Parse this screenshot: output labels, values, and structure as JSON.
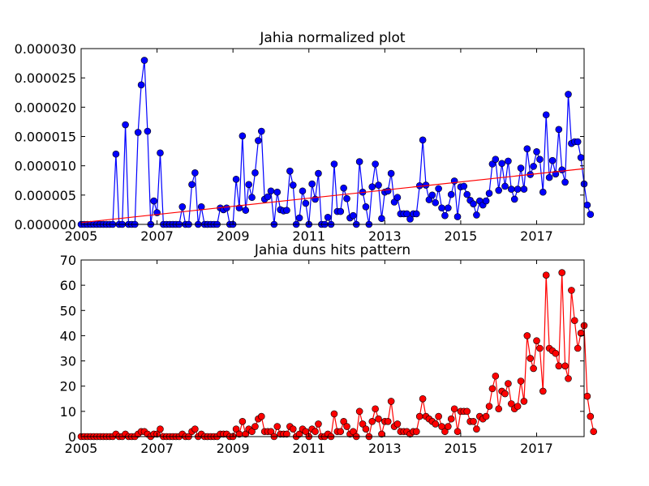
{
  "chart_data": [
    {
      "type": "line",
      "title": "Jahia normalized plot",
      "xlabel": "",
      "ylabel": "",
      "xlim": [
        2005.0,
        2018.25
      ],
      "ylim": [
        0,
        3e-05
      ],
      "x_ticks": [
        2005,
        2007,
        2009,
        2011,
        2013,
        2015,
        2017
      ],
      "x_tick_labels": [
        "2005",
        "2007",
        "2009",
        "2011",
        "2013",
        "2015",
        "2017"
      ],
      "y_ticks": [
        0,
        5e-06,
        1e-05,
        1.5e-05,
        2e-05,
        2.5e-05,
        3e-05
      ],
      "y_tick_labels": [
        "0.000000",
        "0.000005",
        "0.000010",
        "0.000015",
        "0.000020",
        "0.000025",
        "0.000030"
      ],
      "grid": false,
      "series": [
        {
          "color": "#0000ff",
          "marker": "circle",
          "x_start": 2005.0,
          "x_step_months": 1,
          "values": [
            0,
            0,
            0,
            0,
            0,
            0,
            0,
            0,
            0,
            0,
            0,
            1.2e-05,
            0,
            0,
            1.7e-05,
            0,
            0,
            0,
            1.57e-05,
            2.38e-05,
            2.8e-05,
            1.59e-05,
            0,
            4e-06,
            2e-06,
            1.22e-05,
            0,
            0,
            0,
            0,
            0,
            0,
            3e-06,
            0,
            0,
            6.8e-06,
            8.8e-06,
            0,
            3e-06,
            0,
            0,
            0,
            0,
            0,
            2.8e-06,
            2.5e-06,
            2.8e-06,
            0,
            0,
            7.7e-06,
            2.8e-06,
            1.51e-05,
            2.4e-06,
            6.8e-06,
            4.6e-06,
            8.8e-06,
            1.43e-05,
            1.59e-05,
            4.3e-06,
            4.7e-06,
            5.7e-06,
            0,
            5.5e-06,
            2.5e-06,
            2.3e-06,
            2.4e-06,
            9.1e-06,
            6.7e-06,
            0,
            1.1e-06,
            5.7e-06,
            3.6e-06,
            0,
            6.9e-06,
            4.3e-06,
            8.7e-06,
            0,
            0,
            1.2e-06,
            0,
            1.03e-05,
            2.2e-06,
            2.2e-06,
            6.2e-06,
            4.4e-06,
            1.1e-06,
            1.5e-06,
            0,
            1.07e-05,
            5.5e-06,
            3e-06,
            0,
            6.4e-06,
            1.03e-05,
            6.7e-06,
            1e-06,
            5.5e-06,
            5.7e-06,
            8.7e-06,
            3.8e-06,
            4.6e-06,
            1.8e-06,
            1.8e-06,
            1.8e-06,
            9e-07,
            1.8e-06,
            1.8e-06,
            6.6e-06,
            1.44e-05,
            6.7e-06,
            4.2e-06,
            5e-06,
            3.7e-06,
            6.1e-06,
            2.8e-06,
            1.5e-06,
            2.8e-06,
            5.1e-06,
            7.4e-06,
            1.3e-06,
            6.4e-06,
            6.5e-06,
            5.1e-06,
            4.1e-06,
            3.5e-06,
            1.6e-06,
            4e-06,
            3.3e-06,
            4e-06,
            5.3e-06,
            1.03e-05,
            1.11e-05,
            5.8e-06,
            1.04e-05,
            6.5e-06,
            1.08e-05,
            6e-06,
            4.3e-06,
            6e-06,
            9.6e-06,
            6e-06,
            1.29e-05,
            8.5e-06,
            9.9e-06,
            1.24e-05,
            1.11e-05,
            5.5e-06,
            1.87e-05,
            8e-06,
            1.09e-05,
            8.6e-06,
            1.62e-05,
            9.3e-06,
            7.2e-06,
            2.22e-05,
            1.38e-05,
            1.41e-05,
            1.41e-05,
            1.14e-05,
            6.9e-06,
            3.3e-06,
            1.7e-06
          ]
        },
        {
          "color": "#ff0000",
          "marker": "none",
          "x": [
            2005.0,
            2018.25
          ],
          "values": [
            3e-07,
            9.5e-06
          ]
        }
      ]
    },
    {
      "type": "line",
      "title": "Jahia duns hits pattern",
      "xlabel": "",
      "ylabel": "",
      "xlim": [
        2005.0,
        2018.25
      ],
      "ylim": [
        0,
        70
      ],
      "x_ticks": [
        2005,
        2007,
        2009,
        2011,
        2013,
        2015,
        2017
      ],
      "x_tick_labels": [
        "2005",
        "2007",
        "2009",
        "2011",
        "2013",
        "2015",
        "2017"
      ],
      "y_ticks": [
        0,
        10,
        20,
        30,
        40,
        50,
        60,
        70
      ],
      "y_tick_labels": [
        "0",
        "10",
        "20",
        "30",
        "40",
        "50",
        "60",
        "70"
      ],
      "grid": false,
      "series": [
        {
          "color": "#ff0000",
          "marker": "circle",
          "x_start": 2005.0,
          "x_step_months": 1,
          "values": [
            0,
            0,
            0,
            0,
            0,
            0,
            0,
            0,
            0,
            0,
            0,
            1,
            0,
            0,
            1,
            0,
            0,
            0,
            1,
            2,
            2,
            1,
            0,
            1,
            1,
            3,
            0,
            0,
            0,
            0,
            0,
            0,
            1,
            0,
            0,
            2,
            3,
            0,
            1,
            0,
            0,
            0,
            0,
            0,
            1,
            1,
            1,
            0,
            0,
            3,
            1,
            6,
            1,
            3,
            2,
            4,
            7,
            8,
            2,
            2,
            2,
            0,
            4,
            1,
            1,
            1,
            4,
            3,
            0,
            1,
            3,
            2,
            0,
            3,
            2,
            5,
            0,
            0,
            1,
            0,
            9,
            2,
            2,
            6,
            4,
            1,
            2,
            0,
            10,
            5,
            3,
            0,
            6,
            11,
            7,
            1,
            6,
            6,
            14,
            4,
            5,
            2,
            2,
            2,
            1,
            2,
            2,
            8,
            15,
            8,
            7,
            6,
            5,
            8,
            4,
            2,
            4,
            7,
            11,
            2,
            10,
            10,
            10,
            6,
            6,
            3,
            8,
            7,
            8,
            12,
            19,
            24,
            11,
            18,
            17,
            21,
            13,
            11,
            12,
            22,
            14,
            40,
            31,
            27,
            38,
            35,
            18,
            64,
            35,
            34,
            33,
            28,
            65,
            28,
            23,
            58,
            46,
            35,
            41,
            44,
            16,
            8,
            2
          ]
        }
      ]
    }
  ]
}
